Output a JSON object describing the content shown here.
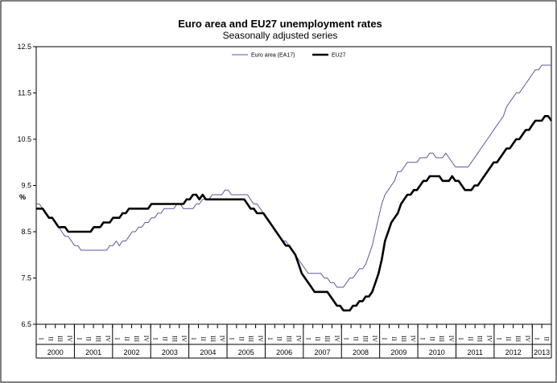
{
  "chart_data": {
    "type": "line",
    "title": "Euro area and EU27 unemployment rates",
    "subtitle": "Seasonally adjusted series",
    "ylabel": "%",
    "xlabel": "",
    "ylim": [
      6.5,
      12.5
    ],
    "yticks": [
      "6.5",
      "7.5",
      "8.5",
      "9.5",
      "10.5",
      "11.5",
      "12.5"
    ],
    "quarter_labels": [
      "I",
      "II",
      "III",
      "IV"
    ],
    "years": [
      "2000",
      "2001",
      "2002",
      "2003",
      "2004",
      "2005",
      "2006",
      "2007",
      "2008",
      "2009",
      "2010",
      "2011",
      "2012",
      "2013"
    ],
    "x_start": "2000-01",
    "x_end": "2013-06",
    "grid": false,
    "legend_position": "top-center",
    "series": [
      {
        "name": "Euro area (EA17)",
        "color": "#5a5aa0",
        "values": [
          9.1,
          9.1,
          9.0,
          8.9,
          8.8,
          8.8,
          8.7,
          8.6,
          8.5,
          8.4,
          8.4,
          8.3,
          8.2,
          8.2,
          8.1,
          8.1,
          8.1,
          8.1,
          8.1,
          8.1,
          8.1,
          8.1,
          8.1,
          8.2,
          8.2,
          8.3,
          8.2,
          8.3,
          8.3,
          8.4,
          8.5,
          8.5,
          8.6,
          8.6,
          8.7,
          8.7,
          8.8,
          8.8,
          8.9,
          8.9,
          9.0,
          9.0,
          9.0,
          9.0,
          9.1,
          9.1,
          9.0,
          9.0,
          9.0,
          9.0,
          9.1,
          9.1,
          9.2,
          9.2,
          9.2,
          9.3,
          9.3,
          9.3,
          9.3,
          9.4,
          9.4,
          9.3,
          9.3,
          9.3,
          9.3,
          9.3,
          9.3,
          9.2,
          9.1,
          9.1,
          9.0,
          8.9,
          8.8,
          8.7,
          8.6,
          8.5,
          8.4,
          8.3,
          8.3,
          8.2,
          8.1,
          8.0,
          7.9,
          7.8,
          7.7,
          7.6,
          7.6,
          7.6,
          7.6,
          7.6,
          7.5,
          7.5,
          7.4,
          7.4,
          7.3,
          7.3,
          7.3,
          7.4,
          7.5,
          7.5,
          7.6,
          7.7,
          7.7,
          7.8,
          8.0,
          8.2,
          8.5,
          8.8,
          9.1,
          9.3,
          9.4,
          9.5,
          9.6,
          9.8,
          9.8,
          9.9,
          10.0,
          10.0,
          10.0,
          10.0,
          10.1,
          10.1,
          10.1,
          10.2,
          10.2,
          10.1,
          10.1,
          10.1,
          10.2,
          10.1,
          10.0,
          9.9,
          9.9,
          9.9,
          9.9,
          9.9,
          10.0,
          10.1,
          10.2,
          10.3,
          10.4,
          10.5,
          10.6,
          10.7,
          10.8,
          10.9,
          11.0,
          11.2,
          11.3,
          11.4,
          11.5,
          11.5,
          11.6,
          11.7,
          11.8,
          11.9,
          12.0,
          12.0,
          12.1,
          12.1,
          12.1,
          12.1
        ]
      },
      {
        "name": "EU27",
        "color": "#000000",
        "values": [
          9.0,
          9.0,
          9.0,
          8.9,
          8.8,
          8.8,
          8.7,
          8.6,
          8.6,
          8.6,
          8.5,
          8.5,
          8.5,
          8.5,
          8.5,
          8.5,
          8.5,
          8.5,
          8.6,
          8.6,
          8.6,
          8.7,
          8.7,
          8.7,
          8.8,
          8.8,
          8.8,
          8.9,
          8.9,
          9.0,
          9.0,
          9.0,
          9.0,
          9.0,
          9.0,
          9.0,
          9.1,
          9.1,
          9.1,
          9.1,
          9.1,
          9.1,
          9.1,
          9.1,
          9.1,
          9.1,
          9.1,
          9.2,
          9.2,
          9.3,
          9.3,
          9.2,
          9.3,
          9.2,
          9.2,
          9.2,
          9.2,
          9.2,
          9.2,
          9.2,
          9.2,
          9.2,
          9.2,
          9.2,
          9.2,
          9.2,
          9.1,
          9.0,
          9.0,
          8.9,
          8.9,
          8.9,
          8.8,
          8.7,
          8.6,
          8.5,
          8.4,
          8.3,
          8.2,
          8.2,
          8.1,
          8.0,
          7.8,
          7.6,
          7.5,
          7.4,
          7.3,
          7.2,
          7.2,
          7.2,
          7.2,
          7.2,
          7.1,
          7.0,
          6.9,
          6.9,
          6.8,
          6.8,
          6.8,
          6.9,
          6.9,
          7.0,
          7.0,
          7.1,
          7.1,
          7.2,
          7.4,
          7.6,
          7.9,
          8.3,
          8.5,
          8.7,
          8.8,
          8.9,
          9.1,
          9.2,
          9.3,
          9.3,
          9.4,
          9.4,
          9.5,
          9.6,
          9.6,
          9.7,
          9.7,
          9.7,
          9.7,
          9.6,
          9.6,
          9.6,
          9.7,
          9.6,
          9.6,
          9.5,
          9.4,
          9.4,
          9.4,
          9.5,
          9.5,
          9.6,
          9.7,
          9.8,
          9.9,
          10.0,
          10.0,
          10.1,
          10.2,
          10.3,
          10.3,
          10.4,
          10.5,
          10.5,
          10.6,
          10.7,
          10.7,
          10.8,
          10.9,
          10.9,
          10.9,
          11.0,
          11.0,
          10.9
        ]
      }
    ]
  }
}
